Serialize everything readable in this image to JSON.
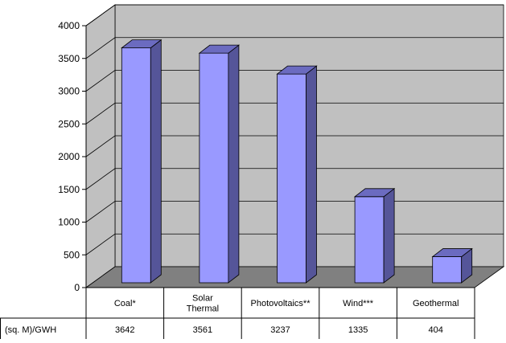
{
  "chart_data": {
    "type": "bar",
    "categories": [
      [
        "Coal*"
      ],
      [
        "Solar",
        "Thermal"
      ],
      [
        "Photovoltaics**"
      ],
      [
        "Wind***"
      ],
      [
        "Geothermal"
      ]
    ],
    "values": [
      3642,
      3561,
      3237,
      1335,
      404
    ],
    "value_labels": [
      "3642",
      "3561",
      "3237",
      "1335",
      "404"
    ],
    "table_row_label": "(sq. M)/GWH",
    "y_ticks": [
      "0",
      "500",
      "1000",
      "1500",
      "2000",
      "2500",
      "3000",
      "3500",
      "4000"
    ],
    "ylim": [
      0,
      4000
    ],
    "grid": true,
    "legend": "none",
    "colors": {
      "bar_front": "#9999ff",
      "bar_side": "#555599",
      "bar_top": "#6b6bc0",
      "wall": "#c0c0c0",
      "floor": "#808080",
      "grid": "#000000"
    }
  }
}
